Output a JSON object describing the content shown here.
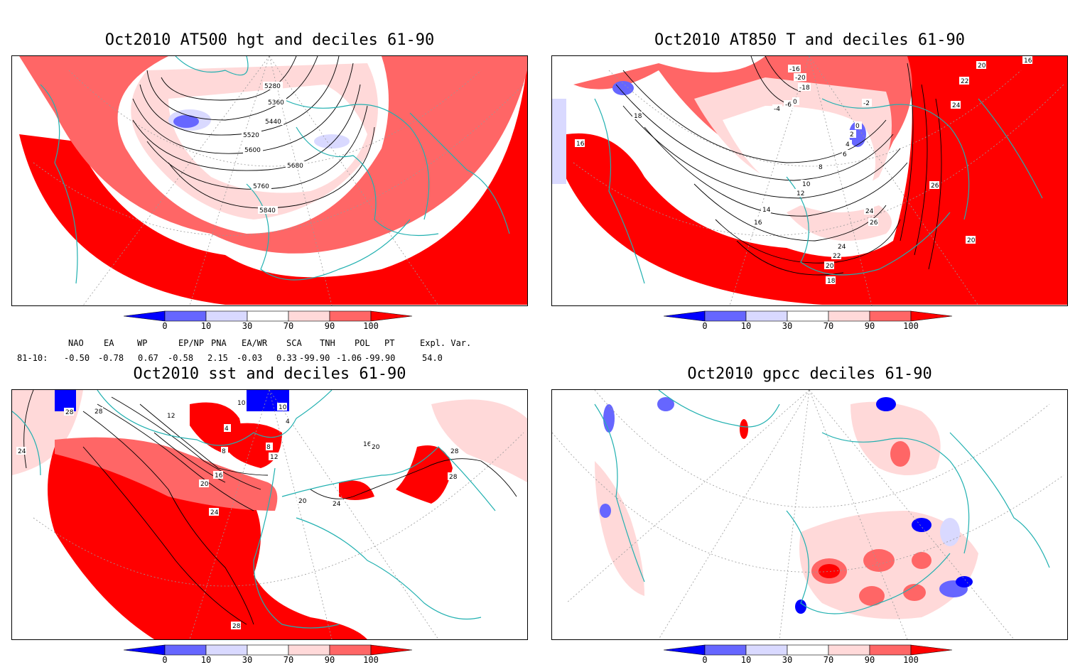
{
  "panels": [
    {
      "id": "hgt",
      "title": "Oct2010 AT500 hgt and deciles 61-90",
      "contour_labels": [
        "5280",
        "5360",
        "5440",
        "5520",
        "5600",
        "5680",
        "5760",
        "5840"
      ]
    },
    {
      "id": "t850",
      "title": "Oct2010 AT850 T and deciles 61-90",
      "contour_labels": [
        "18",
        "16",
        "-16",
        "-20",
        "-18",
        "-4",
        "-6",
        "0",
        "-2",
        "0",
        "2",
        "4",
        "6",
        "8",
        "10",
        "12",
        "14",
        "16",
        "24",
        "26",
        "24",
        "22",
        "20",
        "18",
        "22",
        "24",
        "26",
        "20",
        "16",
        "20"
      ]
    },
    {
      "id": "sst",
      "title": "Oct2010 sst and deciles 61-90",
      "contour_labels": [
        "28",
        "28",
        "12",
        "24",
        "10",
        "4",
        "10",
        "4",
        "8",
        "8",
        "12",
        "16",
        "20",
        "24",
        "20",
        "24",
        "16",
        "20",
        "28",
        "28",
        "28"
      ]
    },
    {
      "id": "gpcc",
      "title": "Oct2010 gpcc deciles 61-90",
      "contour_labels": []
    }
  ],
  "colorbar": {
    "ticks": [
      "0",
      "10",
      "30",
      "70",
      "90",
      "100"
    ],
    "colors": {
      "dark_blue": "#0000ff",
      "mid_blue": "#6666ff",
      "light_blue": "#d9d9ff",
      "white": "#ffffff",
      "light_red": "#ffd9d9",
      "mid_red": "#ff6666",
      "dark_red": "#ff0000"
    }
  },
  "indices": {
    "headers": [
      "NAO",
      "EA",
      "WP",
      "EP/NP",
      "PNA",
      "EA/WR",
      "SCA",
      "TNH",
      "POL",
      "PT",
      "Expl. Var."
    ],
    "row_label": "81-10:",
    "values": [
      "-0.50",
      "-0.78",
      "0.67",
      "-0.58",
      "2.15",
      "-0.03",
      "0.33",
      "-99.90",
      "-1.06",
      "-99.90",
      "54.0"
    ]
  },
  "map_colors": {
    "coast": "#20b0b0",
    "grid": "#999999",
    "contour": "#000000"
  }
}
